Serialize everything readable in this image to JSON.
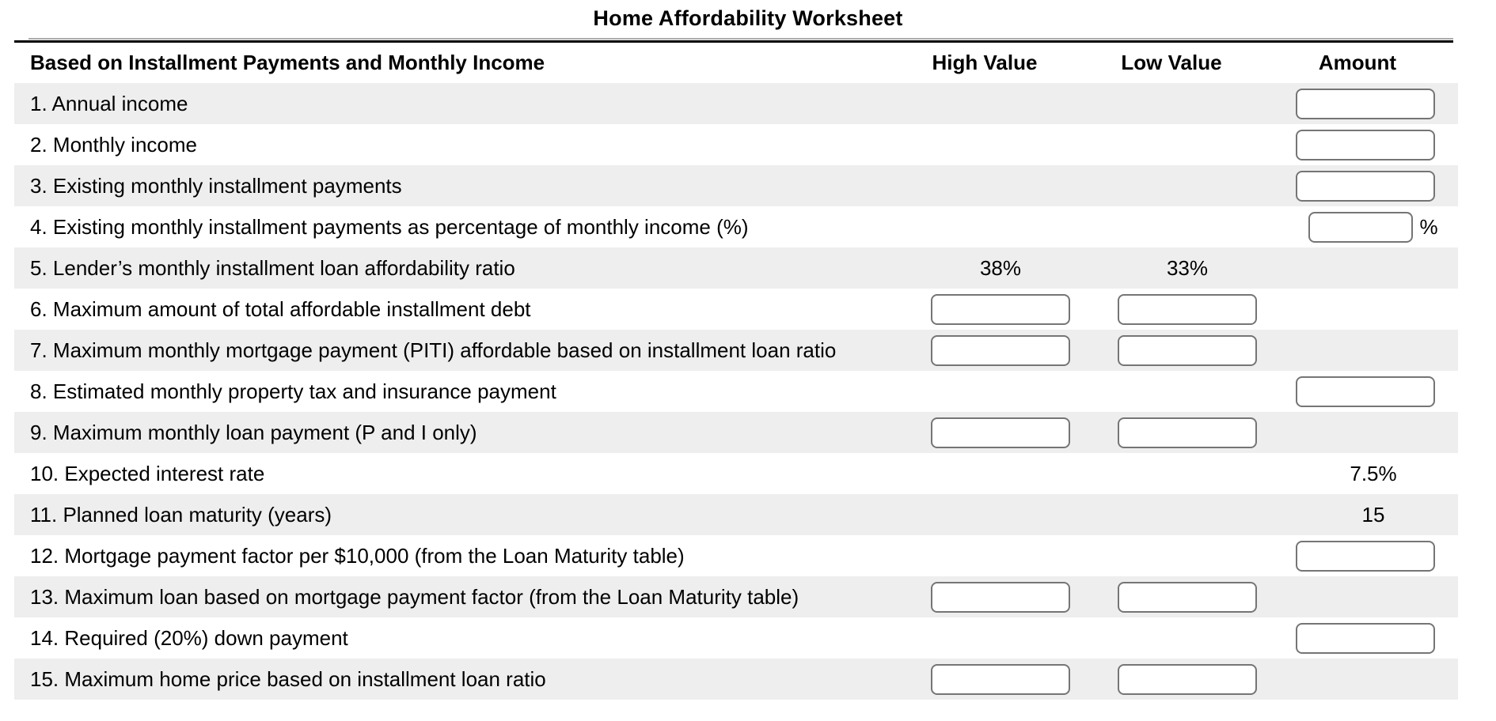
{
  "title": "Home Affordability Worksheet",
  "header": {
    "section": "Based on Installment Payments and Monthly Income",
    "high": "High Value",
    "low": "Low Value",
    "amount": "Amount"
  },
  "rows": [
    {
      "label": "1. Annual income",
      "amount": "input"
    },
    {
      "label": "2. Monthly income",
      "amount": "input"
    },
    {
      "label": "3. Existing monthly installment payments",
      "amount": "input"
    },
    {
      "label": "4. Existing monthly installment payments as percentage of monthly income (%)",
      "amount": "input-narrow",
      "amount_suffix": "%"
    },
    {
      "label": "5. Lender’s monthly installment loan affordability ratio",
      "high": "38%",
      "low": "33%"
    },
    {
      "label": "6. Maximum amount of total affordable installment debt",
      "high": "input",
      "low": "input"
    },
    {
      "label": "7. Maximum monthly mortgage payment (PITI) affordable based on installment loan ratio",
      "high": "input",
      "low": "input"
    },
    {
      "label": "8. Estimated monthly property tax and insurance payment",
      "amount": "input"
    },
    {
      "label": "9. Maximum monthly loan payment (P and I only)",
      "high": "input",
      "low": "input"
    },
    {
      "label": "10. Expected interest rate",
      "amount_text": "7.5%"
    },
    {
      "label": "11. Planned loan maturity (years)",
      "amount_text": "15"
    },
    {
      "label": "12. Mortgage payment factor per $10,000 (from the Loan Maturity table)",
      "amount": "input"
    },
    {
      "label": "13. Maximum loan based on mortgage payment factor (from the Loan Maturity table)",
      "high": "input",
      "low": "input"
    },
    {
      "label": "14. Required (20%) down payment",
      "amount": "input"
    },
    {
      "label": "15. Maximum home price based on installment loan ratio",
      "high": "input",
      "low": "input"
    }
  ],
  "input_value_placeholder": "",
  "colors": {
    "row_shaded": "#eeeeee",
    "input_border": "#757575",
    "rule_gray": "#ababab",
    "rule_black": "#000000",
    "text": "#000000"
  }
}
